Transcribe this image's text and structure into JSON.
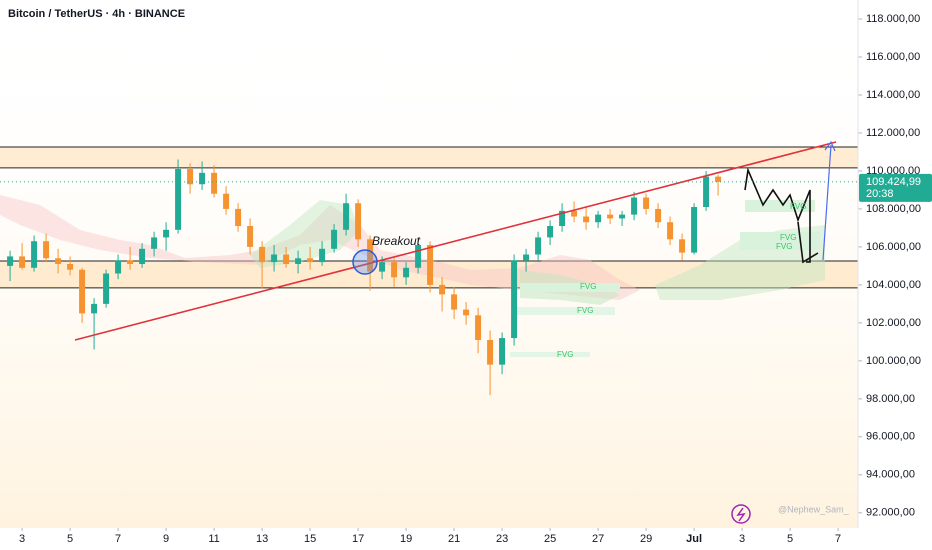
{
  "chart_data": {
    "type": "candlestick",
    "title": "Bitcoin / TetherUS · 4h · BINANCE",
    "annotation": "Breakout",
    "fvg_labels": [
      "FVG",
      "FVG",
      "FVG",
      "FVG",
      "FVG",
      "FVG"
    ],
    "watermark": "@Nephew_Sam_",
    "countdown": "20:38",
    "last_price": {
      "value": 109424.99,
      "label": "109.424,99"
    },
    "up_color": "#22ab94",
    "down_color": "#f59331",
    "levels": [
      111263,
      110160,
      105260,
      103840
    ],
    "x": [
      2.5,
      3,
      3.5,
      4,
      4.5,
      5,
      5.5,
      6,
      6.5,
      7,
      7.5,
      8,
      8.5,
      9,
      9.5,
      10,
      10.5,
      11,
      11.5,
      12,
      12.5,
      13,
      13.5,
      14,
      14.5,
      15,
      15.5,
      16,
      16.5,
      17,
      17.5,
      18,
      18.5,
      19,
      19.5,
      20,
      20.5,
      21,
      21.5,
      22,
      22.5,
      23,
      23.5,
      24,
      24.5,
      25,
      25.5,
      26,
      26.5,
      27,
      27.5,
      28,
      28.5,
      29,
      29.5,
      30,
      30.5,
      31,
      31.5,
      32
    ],
    "open": [
      105000,
      105500,
      104900,
      106300,
      105400,
      105100,
      104800,
      102500,
      103000,
      104600,
      105300,
      105100,
      105900,
      106500,
      106900,
      110100,
      109300,
      109900,
      108800,
      108000,
      107100,
      106000,
      105200,
      105600,
      105100,
      105400,
      105200,
      105900,
      106900,
      108300,
      106400,
      104700,
      105200,
      104400,
      104900,
      106100,
      104000,
      103500,
      102700,
      102400,
      101100,
      99800,
      101200,
      105300,
      105600,
      106500,
      107100,
      107900,
      107600,
      107300,
      107700,
      107500,
      107700,
      108600,
      108000,
      107300,
      106400,
      105700,
      108100,
      109700
    ],
    "high": [
      105800,
      106200,
      106600,
      106700,
      105900,
      105500,
      104900,
      103300,
      104800,
      105600,
      106000,
      106200,
      106800,
      107300,
      110600,
      110400,
      110500,
      110300,
      109200,
      108300,
      107500,
      106300,
      106100,
      106000,
      105800,
      106000,
      106300,
      107200,
      108800,
      108500,
      106600,
      105500,
      105400,
      105200,
      106500,
      106300,
      104400,
      103900,
      103100,
      102800,
      101600,
      101500,
      105600,
      105900,
      106800,
      107400,
      108300,
      108400,
      108100,
      107900,
      108000,
      107900,
      108900,
      108800,
      108300,
      107600,
      106700,
      108300,
      110000,
      109800
    ],
    "low": [
      104200,
      104800,
      104700,
      105200,
      104600,
      104500,
      102000,
      100600,
      102800,
      104300,
      104800,
      104900,
      105500,
      105800,
      106700,
      108800,
      109000,
      108600,
      107700,
      106800,
      105600,
      103800,
      104700,
      104900,
      104600,
      104800,
      105000,
      105700,
      106600,
      106000,
      103700,
      104300,
      103900,
      104000,
      104600,
      103600,
      102600,
      102200,
      101900,
      100400,
      98200,
      99300,
      100800,
      104700,
      105200,
      106100,
      106800,
      107300,
      106900,
      107000,
      107200,
      107100,
      107400,
      107700,
      107000,
      106100,
      105300,
      105600,
      107900,
      108700
    ],
    "close": [
      105500,
      104900,
      106300,
      105400,
      105100,
      104800,
      102500,
      103000,
      104600,
      105300,
      105100,
      105900,
      106500,
      106900,
      110100,
      109300,
      109900,
      108800,
      108000,
      107100,
      106000,
      105200,
      105600,
      105100,
      105400,
      105200,
      105900,
      106900,
      108300,
      106400,
      104700,
      105200,
      104400,
      104900,
      106100,
      104000,
      103500,
      102700,
      102400,
      101100,
      99800,
      101200,
      105300,
      105600,
      106500,
      107100,
      107900,
      107600,
      107300,
      107700,
      107500,
      107700,
      108600,
      108000,
      107300,
      106400,
      105700,
      108100,
      109700,
      109424.99
    ],
    "xlim": [
      2.08,
      37.83
    ],
    "xticks": [
      3,
      5,
      7,
      9,
      11,
      13,
      15,
      17,
      19,
      21,
      23,
      25,
      27,
      29,
      {
        "value": 31,
        "label": "Jul"
      },
      {
        "value": 33,
        "label": "3"
      },
      {
        "value": 35,
        "label": "5"
      },
      {
        "value": 37,
        "label": "7"
      }
    ],
    "ylim": [
      91200,
      119000
    ],
    "yticks": [
      {
        "value": 118000,
        "label": "118.000,00"
      },
      {
        "value": 116000,
        "label": "116.000,00"
      },
      {
        "value": 114000,
        "label": "114.000,00"
      },
      {
        "value": 112000,
        "label": "112.000,00"
      },
      {
        "value": 110000,
        "label": "110.000,00"
      },
      {
        "value": 108000,
        "label": "108.000,00"
      },
      {
        "value": 106000,
        "label": "106.000,00"
      },
      {
        "value": 104000,
        "label": "104.000,00"
      },
      {
        "value": 102000,
        "label": "102.000,00"
      },
      {
        "value": 100000,
        "label": "100.000,00"
      },
      {
        "value": 98000,
        "label": "98.000,00"
      },
      {
        "value": 96000,
        "label": "96.000,00"
      },
      {
        "value": 94000,
        "label": "94.000,00"
      },
      {
        "value": 92000,
        "label": "92.000,00"
      }
    ]
  }
}
